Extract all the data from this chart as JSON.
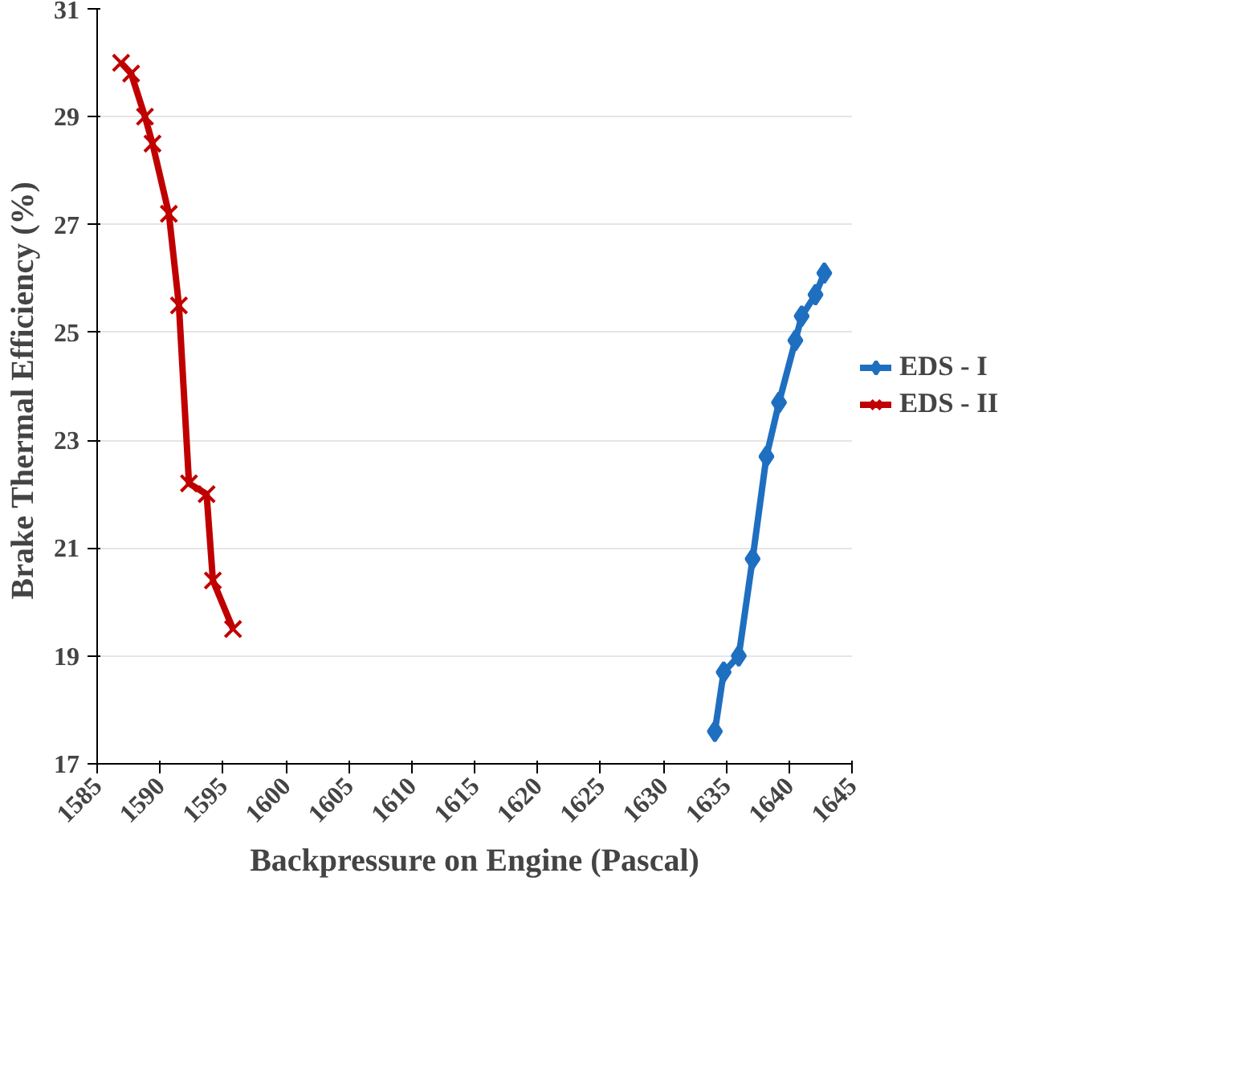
{
  "chart_data": {
    "type": "line",
    "xlabel": "Backpressure on Engine (Pascal)",
    "ylabel": "Brake Thermal  Efficiency (%)",
    "xlim": [
      1585,
      1645
    ],
    "xticks": [
      1585,
      1590,
      1595,
      1600,
      1605,
      1610,
      1615,
      1620,
      1625,
      1630,
      1635,
      1640,
      1645
    ],
    "ylim": [
      17,
      31
    ],
    "yticks": [
      17,
      19,
      21,
      23,
      25,
      27,
      29,
      31
    ],
    "grid": "y",
    "legend": "right",
    "series": [
      {
        "name": "EDS - I",
        "color": "#1f6fc0",
        "marker": "diamond",
        "x": [
          1634.1,
          1634.8,
          1636.0,
          1637.1,
          1638.2,
          1639.2,
          1640.5,
          1641.0,
          1642.1,
          1642.8
        ],
        "values": [
          17.6,
          18.7,
          19.0,
          20.8,
          22.7,
          23.7,
          24.85,
          25.3,
          25.7,
          26.1
        ]
      },
      {
        "name": "EDS - II",
        "color": "#c00000",
        "marker": "cross",
        "x": [
          1586.9,
          1587.7,
          1588.8,
          1589.4,
          1590.7,
          1591.5,
          1592.3,
          1593.7,
          1594.2,
          1595.8
        ],
        "values": [
          30.0,
          29.8,
          29.0,
          28.5,
          27.2,
          25.5,
          22.2,
          22.0,
          20.4,
          19.5
        ]
      }
    ]
  }
}
